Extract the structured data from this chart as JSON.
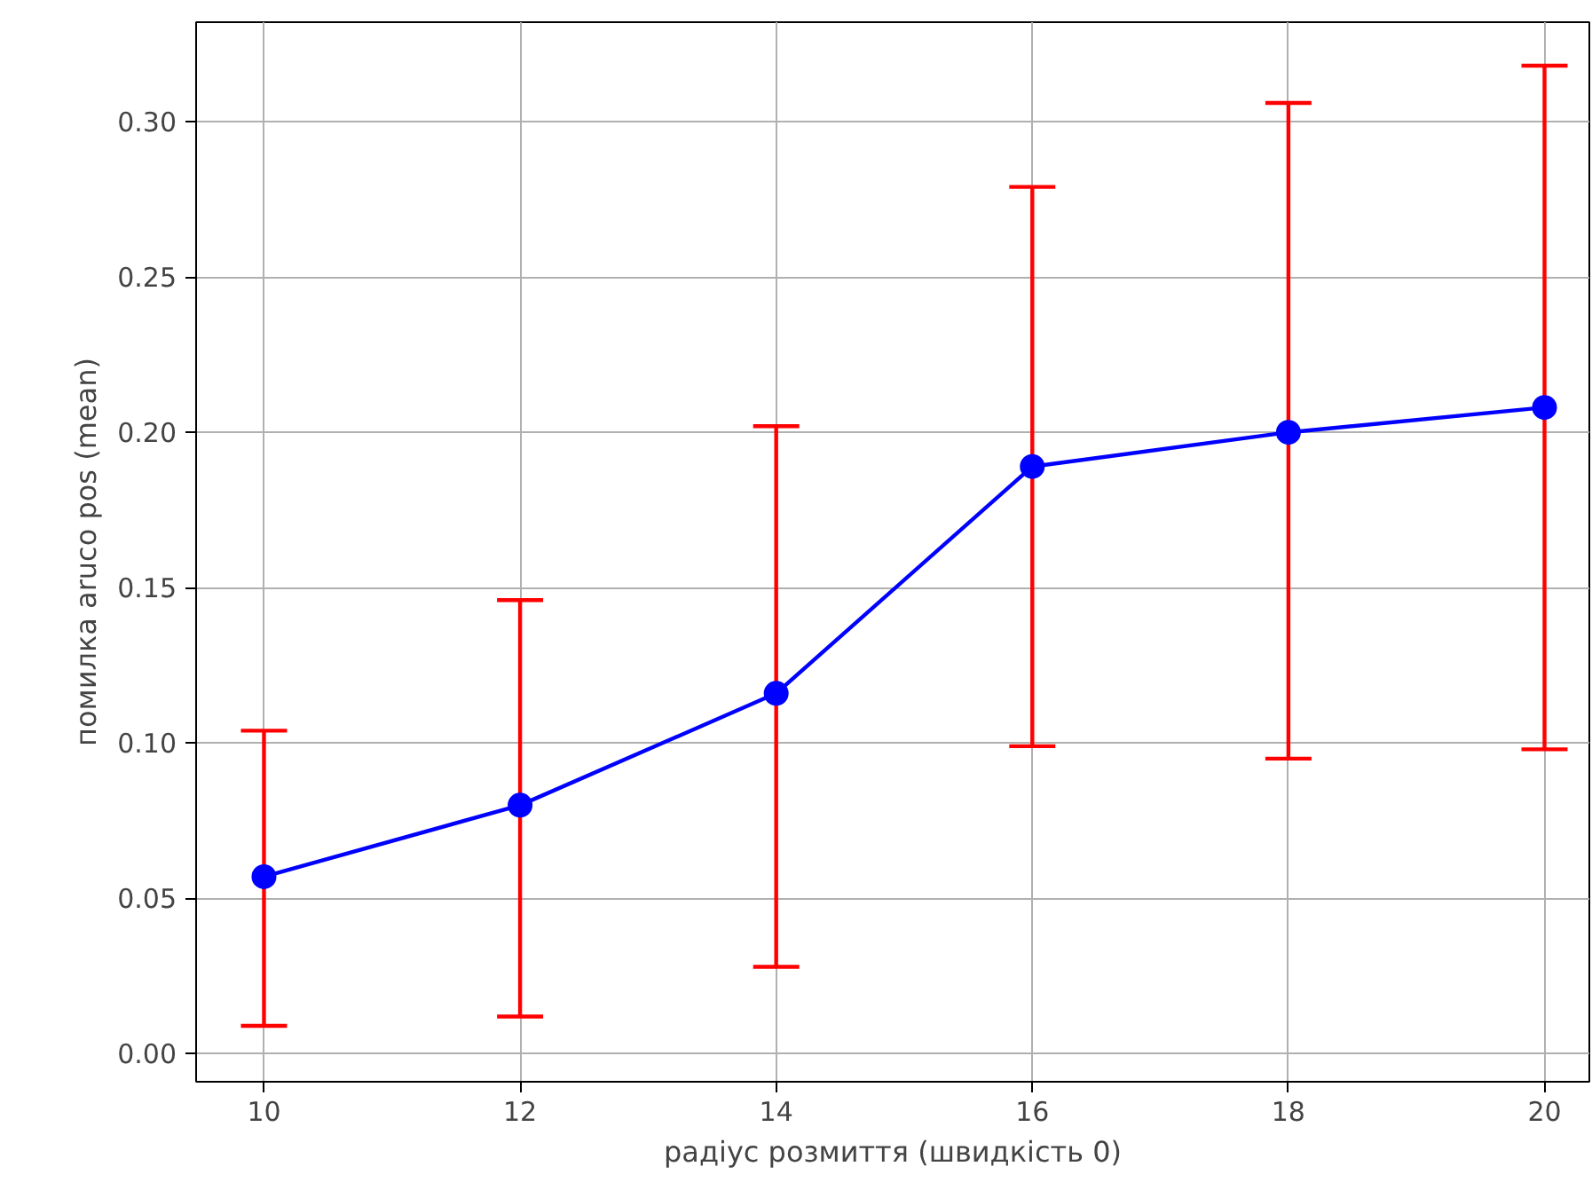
{
  "chart_data": {
    "type": "line",
    "xlabel": "радіус розмиття (швидкість 0)",
    "ylabel": "помилка aruco pos (mean)",
    "x": [
      10,
      12,
      14,
      16,
      18,
      20
    ],
    "series": [
      {
        "color": "#0000ff",
        "values": [
          0.057,
          0.08,
          0.116,
          0.189,
          0.2,
          0.208
        ],
        "errors": [
          [
            0.009,
            0.104
          ],
          [
            0.012,
            0.146
          ],
          [
            0.028,
            0.202
          ],
          [
            0.099,
            0.279
          ],
          [
            0.095,
            0.306
          ],
          [
            0.098,
            0.318
          ]
        ]
      }
    ],
    "xlim": [
      9.47,
      20.35
    ],
    "ylim": [
      -0.009,
      0.332
    ],
    "xticks": [
      10,
      12,
      14,
      16,
      18,
      20
    ],
    "yticks": [
      {
        "value": 0,
        "label": "0.00"
      },
      {
        "value": 0.05,
        "label": "0.05"
      },
      {
        "value": 0.1,
        "label": "0.10"
      },
      {
        "value": 0.15,
        "label": "0.15"
      },
      {
        "value": 0.2,
        "label": "0.20"
      },
      {
        "value": 0.25,
        "label": "0.25"
      },
      {
        "value": 0.3,
        "label": "0.30"
      }
    ],
    "grid": true,
    "marker": "circle",
    "line_style": "solid"
  }
}
